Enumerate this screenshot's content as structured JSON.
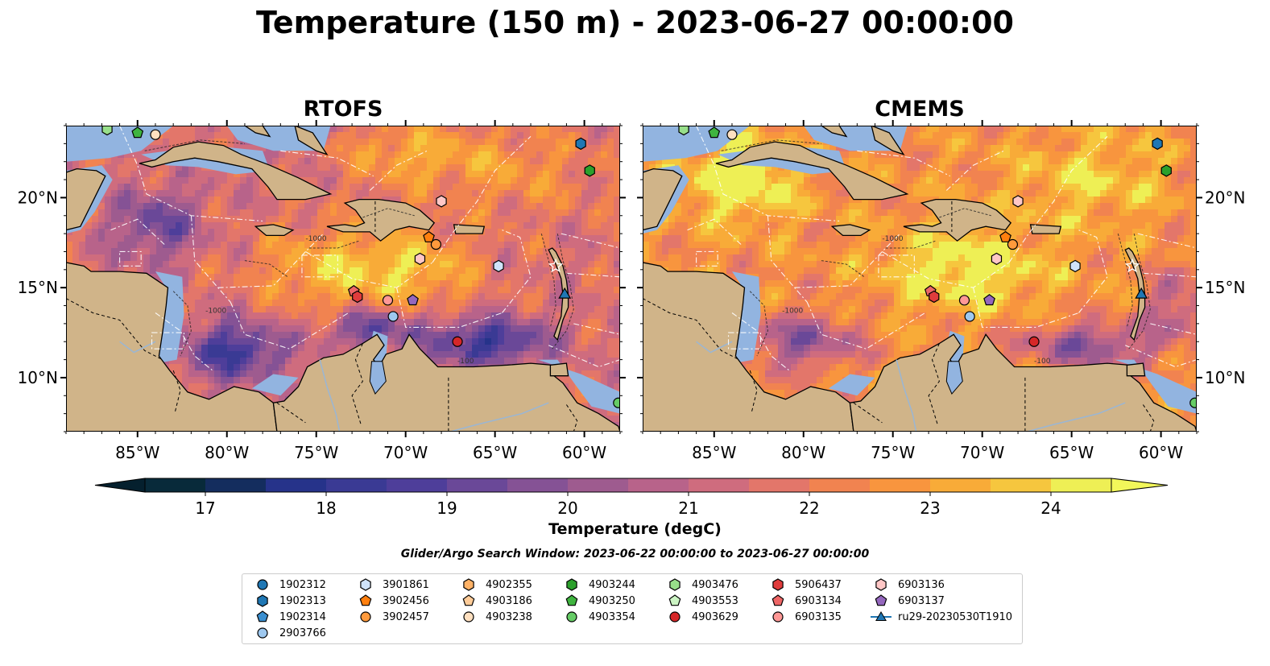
{
  "title": "Temperature (150 m) - 2023-06-27 00:00:00",
  "panels": [
    {
      "title": "RTOFS",
      "model": "rtofs"
    },
    {
      "title": "CMEMS",
      "model": "cmems"
    }
  ],
  "map": {
    "lon_range": [
      -89,
      -58
    ],
    "lat_range": [
      7,
      24
    ],
    "lon_ticks": [
      "85°W",
      "80°W",
      "75°W",
      "70°W",
      "65°W",
      "60°W"
    ],
    "lat_ticks": [
      "20°N",
      "15°N",
      "10°N"
    ],
    "contour_labels": [
      "-1000",
      "-100",
      "-1000"
    ]
  },
  "colorbar": {
    "label": "Temperature (degC)",
    "min": 16.5,
    "max": 24.5,
    "extend": "both",
    "ticks": [
      "17",
      "18",
      "19",
      "20",
      "21",
      "22",
      "23",
      "24"
    ],
    "colors": [
      "#082a3a",
      "#142d5e",
      "#26338a",
      "#3a3a94",
      "#4e3e9a",
      "#6a4898",
      "#855295",
      "#9e5b8f",
      "#b8638a",
      "#cf6c7e",
      "#e3766a",
      "#f18350",
      "#f8953e",
      "#f8ab38",
      "#f6c63e",
      "#eeef55"
    ]
  },
  "search_window": "Glider/Argo Search Window: 2023-06-22 00:00:00 to 2023-06-27 00:00:00",
  "legend": [
    {
      "label": "1902312",
      "marker": "circle",
      "color": "#1f77b4"
    },
    {
      "label": "1902313",
      "marker": "hexagon",
      "color": "#1f77b4"
    },
    {
      "label": "1902314",
      "marker": "pentagon",
      "color": "#3a8fd0"
    },
    {
      "label": "2903766",
      "marker": "circle",
      "color": "#9ec8ef"
    },
    {
      "label": "3901861",
      "marker": "hexagon",
      "color": "#cfe3fb"
    },
    {
      "label": "3902456",
      "marker": "pentagon",
      "color": "#ff7f0e"
    },
    {
      "label": "3902457",
      "marker": "circle",
      "color": "#ff9a3c"
    },
    {
      "label": "4902355",
      "marker": "hexagon",
      "color": "#ffb266"
    },
    {
      "label": "4903186",
      "marker": "pentagon",
      "color": "#ffcc99"
    },
    {
      "label": "4903238",
      "marker": "circle",
      "color": "#ffe0c0"
    },
    {
      "label": "4903244",
      "marker": "hexagon",
      "color": "#2ca02c"
    },
    {
      "label": "4903250",
      "marker": "pentagon",
      "color": "#3fb43f"
    },
    {
      "label": "4903354",
      "marker": "circle",
      "color": "#66cc66"
    },
    {
      "label": "4903476",
      "marker": "hexagon",
      "color": "#98df8a"
    },
    {
      "label": "4903553",
      "marker": "pentagon",
      "color": "#ccf5c4"
    },
    {
      "label": "4903629",
      "marker": "circle",
      "color": "#d62728"
    },
    {
      "label": "5906437",
      "marker": "hexagon",
      "color": "#e03c3c"
    },
    {
      "label": "6903134",
      "marker": "pentagon",
      "color": "#ee6666"
    },
    {
      "label": "6903135",
      "marker": "circle",
      "color": "#ff9896"
    },
    {
      "label": "6903136",
      "marker": "hexagon",
      "color": "#ffc7c6"
    },
    {
      "label": "6903137",
      "marker": "pentagon",
      "color": "#9467bd"
    },
    {
      "label": "ru29-20230530T1910",
      "marker": "triangle-line",
      "color": "#1f77b4"
    }
  ],
  "floats": [
    {
      "id": "1902313",
      "lon": -60.2,
      "lat": 23.0
    },
    {
      "id": "4903244",
      "lon": -59.7,
      "lat": 21.5
    },
    {
      "id": "4903250",
      "lon": -85.0,
      "lat": 23.6
    },
    {
      "id": "4903238",
      "lon": -84.0,
      "lat": 23.5
    },
    {
      "id": "4903476",
      "lon": -86.7,
      "lat": 23.8
    },
    {
      "id": "6903136",
      "lon": -68.0,
      "lat": 19.8
    },
    {
      "id": "3902456",
      "lon": -68.7,
      "lat": 17.8
    },
    {
      "id": "3902457",
      "lon": -68.3,
      "lat": 17.4
    },
    {
      "id": "6903136",
      "lon": -69.2,
      "lat": 16.6
    },
    {
      "id": "3901861",
      "lon": -64.8,
      "lat": 16.2
    },
    {
      "id": "6903134",
      "lon": -72.9,
      "lat": 14.8
    },
    {
      "id": "5906437",
      "lon": -72.7,
      "lat": 14.5
    },
    {
      "id": "6903135",
      "lon": -71.0,
      "lat": 14.3
    },
    {
      "id": "6903137",
      "lon": -69.6,
      "lat": 14.3
    },
    {
      "id": "2903766",
      "lon": -70.7,
      "lat": 13.4
    },
    {
      "id": "4903629",
      "lon": -67.1,
      "lat": 12.0
    },
    {
      "id": "4903354",
      "lon": -58.1,
      "lat": 8.6
    }
  ],
  "glider": {
    "id": "ru29-20230530T1910",
    "lon": -61.1,
    "lat": 14.6
  }
}
